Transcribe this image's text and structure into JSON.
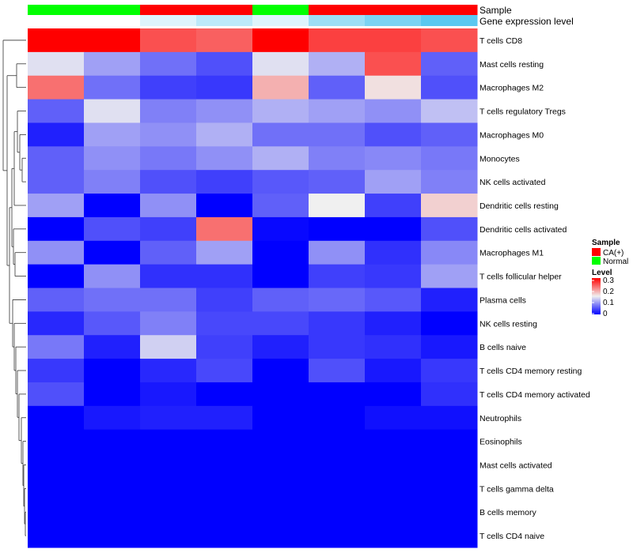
{
  "chart_data": {
    "type": "heatmap",
    "annotation_tracks": [
      {
        "name": "Sample",
        "values": [
          "Normal",
          "Normal",
          "CA(+)",
          "CA(+)",
          "Normal",
          "CA(+)",
          "CA(+)",
          "CA(+)"
        ]
      },
      {
        "name": "Gene expression level",
        "values": [
          0.0,
          0.0,
          0.1,
          0.2,
          0.1,
          0.3,
          0.4,
          0.5
        ]
      }
    ],
    "rows": [
      "T cells CD8",
      "Mast cells resting",
      "Macrophages M2",
      "T cells regulatory  Tregs",
      "Macrophages M0",
      "Monocytes",
      "NK cells activated",
      "Dendritic cells resting",
      "Dendritic cells activated",
      "Macrophages M1",
      "T cells follicular helper",
      "Plasma cells",
      "NK cells resting",
      "B cells naive",
      "T cells CD4 memory resting",
      "T cells CD4 memory activated",
      "Neutrophils",
      "Eosinophils",
      "Mast cells activated",
      "T cells gamma delta",
      "B cells memory",
      "T cells CD4 naive"
    ],
    "values": [
      [
        0.3,
        0.3,
        0.25,
        0.24,
        0.3,
        0.26,
        0.26,
        0.25
      ],
      [
        0.14,
        0.1,
        0.07,
        0.05,
        0.14,
        0.11,
        0.25,
        0.06
      ],
      [
        0.23,
        0.07,
        0.04,
        0.035,
        0.19,
        0.06,
        0.16,
        0.05
      ],
      [
        0.06,
        0.14,
        0.08,
        0.09,
        0.11,
        0.1,
        0.09,
        0.12
      ],
      [
        0.02,
        0.1,
        0.09,
        0.11,
        0.07,
        0.07,
        0.05,
        0.06
      ],
      [
        0.06,
        0.09,
        0.075,
        0.09,
        0.11,
        0.08,
        0.085,
        0.075
      ],
      [
        0.06,
        0.08,
        0.05,
        0.04,
        0.055,
        0.06,
        0.1,
        0.08
      ],
      [
        0.1,
        0.0,
        0.09,
        0.0,
        0.06,
        0.15,
        0.04,
        0.17
      ],
      [
        0.0,
        0.05,
        0.04,
        0.23,
        0.005,
        0.0,
        0.0,
        0.05
      ],
      [
        0.09,
        0.0,
        0.06,
        0.1,
        0.0,
        0.09,
        0.03,
        0.085
      ],
      [
        0.0,
        0.09,
        0.03,
        0.03,
        0.0,
        0.04,
        0.035,
        0.1
      ],
      [
        0.06,
        0.07,
        0.07,
        0.04,
        0.06,
        0.065,
        0.055,
        0.02
      ],
      [
        0.025,
        0.055,
        0.08,
        0.045,
        0.045,
        0.035,
        0.02,
        0.0
      ],
      [
        0.075,
        0.02,
        0.13,
        0.04,
        0.02,
        0.035,
        0.03,
        0.015
      ],
      [
        0.035,
        0.0,
        0.025,
        0.045,
        0.0,
        0.05,
        0.015,
        0.035
      ],
      [
        0.05,
        0.0,
        0.015,
        0.0,
        0.0,
        0.0,
        0.0,
        0.03
      ],
      [
        0.0,
        0.015,
        0.02,
        0.02,
        0.0,
        0.0,
        0.01,
        0.01
      ],
      [
        0.0,
        0.0,
        0.0,
        0.0,
        0.0,
        0.0,
        0.0,
        0.0
      ],
      [
        0.0,
        0.0,
        0.0,
        0.0,
        0.0,
        0.0,
        0.0,
        0.0
      ],
      [
        0.0,
        0.0,
        0.0,
        0.0,
        0.0,
        0.0,
        0.0,
        0.0
      ],
      [
        0.0,
        0.0,
        0.0,
        0.0,
        0.0,
        0.0,
        0.0,
        0.0
      ],
      [
        0.0,
        0.0,
        0.0,
        0.0,
        0.0,
        0.0,
        0.0,
        0.0
      ]
    ],
    "color_scale": {
      "min": 0,
      "max": 0.3,
      "low": "#0000FF",
      "mid": "#F0F0F0",
      "high": "#FF0000",
      "mid_value": 0.15
    },
    "gene_expression_color_scale": {
      "min": 0,
      "max": 0.5,
      "low": "#FFFFFF",
      "high": "#5BC8F0"
    },
    "legends": [
      {
        "title": "Sample",
        "entries": [
          {
            "label": "CA(+)",
            "color": "#FF0000"
          },
          {
            "label": "Normal",
            "color": "#00FF00"
          }
        ]
      },
      {
        "title": "Level",
        "ticks": [
          "0.3",
          "0.2",
          "0.1",
          "0"
        ]
      }
    ],
    "legend_position": "right",
    "row_dendrogram": true,
    "column_dendrogram": false,
    "grid": false
  }
}
